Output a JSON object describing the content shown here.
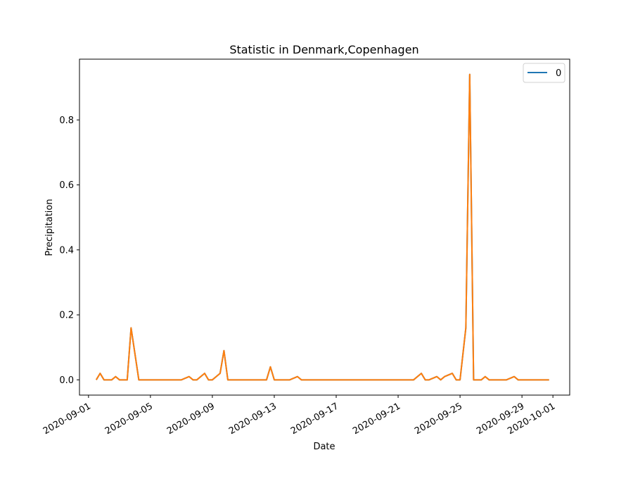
{
  "chart_data": {
    "type": "line",
    "title": "Statistic in Denmark,Copenhagen",
    "xlabel": "Date",
    "ylabel": "Precipitation",
    "xlim": [
      "2020-08-31T10:00",
      "2020-10-02T02:00"
    ],
    "ylim": [
      -0.047,
      0.987
    ],
    "x_ticks": [
      "2020-09-01",
      "2020-09-05",
      "2020-09-09",
      "2020-09-13",
      "2020-09-17",
      "2020-09-21",
      "2020-09-25",
      "2020-09-29",
      "2020-10-01"
    ],
    "y_ticks": [
      0.0,
      0.2,
      0.4,
      0.6,
      0.8
    ],
    "y_tick_labels": [
      "0.0",
      "0.2",
      "0.4",
      "0.6",
      "0.8"
    ],
    "legend": {
      "position": "top-right",
      "entries": [
        "0"
      ]
    },
    "grid": false,
    "series": [
      {
        "name": "0",
        "color": "#1f77b4",
        "points": [
          [
            "2020-09-01T12:00",
            0.0
          ],
          [
            "2020-09-01T18:00",
            0.02
          ],
          [
            "2020-09-02T00:00",
            0.0
          ],
          [
            "2020-09-02T12:00",
            0.0
          ],
          [
            "2020-09-02T18:00",
            0.01
          ],
          [
            "2020-09-03T00:00",
            0.0
          ],
          [
            "2020-09-03T12:00",
            0.0
          ],
          [
            "2020-09-03T18:00",
            0.16
          ],
          [
            "2020-09-04T06:00",
            0.0
          ],
          [
            "2020-09-07T00:00",
            0.0
          ],
          [
            "2020-09-07T12:00",
            0.01
          ],
          [
            "2020-09-07T18:00",
            0.0
          ],
          [
            "2020-09-08T00:00",
            0.0
          ],
          [
            "2020-09-08T12:00",
            0.02
          ],
          [
            "2020-09-08T18:00",
            0.0
          ],
          [
            "2020-09-09T00:00",
            0.0
          ],
          [
            "2020-09-09T12:00",
            0.02
          ],
          [
            "2020-09-09T18:00",
            0.09
          ],
          [
            "2020-09-10T00:00",
            0.0
          ],
          [
            "2020-09-12T12:00",
            0.0
          ],
          [
            "2020-09-12T18:00",
            0.04
          ],
          [
            "2020-09-13T00:00",
            0.0
          ],
          [
            "2020-09-14T00:00",
            0.0
          ],
          [
            "2020-09-14T12:00",
            0.01
          ],
          [
            "2020-09-14T18:00",
            0.0
          ],
          [
            "2020-09-22T00:00",
            0.0
          ],
          [
            "2020-09-22T12:00",
            0.02
          ],
          [
            "2020-09-22T18:00",
            0.0
          ],
          [
            "2020-09-23T00:00",
            0.0
          ],
          [
            "2020-09-23T12:00",
            0.01
          ],
          [
            "2020-09-23T18:00",
            0.0
          ],
          [
            "2020-09-24T00:00",
            0.01
          ],
          [
            "2020-09-24T12:00",
            0.02
          ],
          [
            "2020-09-24T18:00",
            0.0
          ],
          [
            "2020-09-25T00:00",
            0.0
          ],
          [
            "2020-09-25T09:00",
            0.16
          ],
          [
            "2020-09-25T15:00",
            0.94
          ],
          [
            "2020-09-25T21:00",
            0.0
          ],
          [
            "2020-09-26T09:00",
            0.0
          ],
          [
            "2020-09-26T15:00",
            0.01
          ],
          [
            "2020-09-26T21:00",
            0.0
          ],
          [
            "2020-09-28T00:00",
            0.0
          ],
          [
            "2020-09-28T12:00",
            0.01
          ],
          [
            "2020-09-28T18:00",
            0.0
          ],
          [
            "2020-09-30T18:00",
            0.0
          ]
        ]
      },
      {
        "color": "#ff7f0e",
        "points": [
          [
            "2020-09-01T12:00",
            0.0
          ],
          [
            "2020-09-01T18:00",
            0.02
          ],
          [
            "2020-09-02T00:00",
            0.0
          ],
          [
            "2020-09-02T12:00",
            0.0
          ],
          [
            "2020-09-02T18:00",
            0.01
          ],
          [
            "2020-09-03T00:00",
            0.0
          ],
          [
            "2020-09-03T12:00",
            0.0
          ],
          [
            "2020-09-03T18:00",
            0.16
          ],
          [
            "2020-09-04T06:00",
            0.0
          ],
          [
            "2020-09-07T00:00",
            0.0
          ],
          [
            "2020-09-07T12:00",
            0.01
          ],
          [
            "2020-09-07T18:00",
            0.0
          ],
          [
            "2020-09-08T00:00",
            0.0
          ],
          [
            "2020-09-08T12:00",
            0.02
          ],
          [
            "2020-09-08T18:00",
            0.0
          ],
          [
            "2020-09-09T00:00",
            0.0
          ],
          [
            "2020-09-09T12:00",
            0.02
          ],
          [
            "2020-09-09T18:00",
            0.09
          ],
          [
            "2020-09-10T00:00",
            0.0
          ],
          [
            "2020-09-12T12:00",
            0.0
          ],
          [
            "2020-09-12T18:00",
            0.04
          ],
          [
            "2020-09-13T00:00",
            0.0
          ],
          [
            "2020-09-14T00:00",
            0.0
          ],
          [
            "2020-09-14T12:00",
            0.01
          ],
          [
            "2020-09-14T18:00",
            0.0
          ],
          [
            "2020-09-22T00:00",
            0.0
          ],
          [
            "2020-09-22T12:00",
            0.02
          ],
          [
            "2020-09-22T18:00",
            0.0
          ],
          [
            "2020-09-23T00:00",
            0.0
          ],
          [
            "2020-09-23T12:00",
            0.01
          ],
          [
            "2020-09-23T18:00",
            0.0
          ],
          [
            "2020-09-24T00:00",
            0.01
          ],
          [
            "2020-09-24T12:00",
            0.02
          ],
          [
            "2020-09-24T18:00",
            0.0
          ],
          [
            "2020-09-25T00:00",
            0.0
          ],
          [
            "2020-09-25T09:00",
            0.16
          ],
          [
            "2020-09-25T15:00",
            0.94
          ],
          [
            "2020-09-25T21:00",
            0.0
          ],
          [
            "2020-09-26T09:00",
            0.0
          ],
          [
            "2020-09-26T15:00",
            0.01
          ],
          [
            "2020-09-26T21:00",
            0.0
          ],
          [
            "2020-09-28T00:00",
            0.0
          ],
          [
            "2020-09-28T12:00",
            0.01
          ],
          [
            "2020-09-28T18:00",
            0.0
          ],
          [
            "2020-09-30T18:00",
            0.0
          ]
        ]
      }
    ]
  }
}
